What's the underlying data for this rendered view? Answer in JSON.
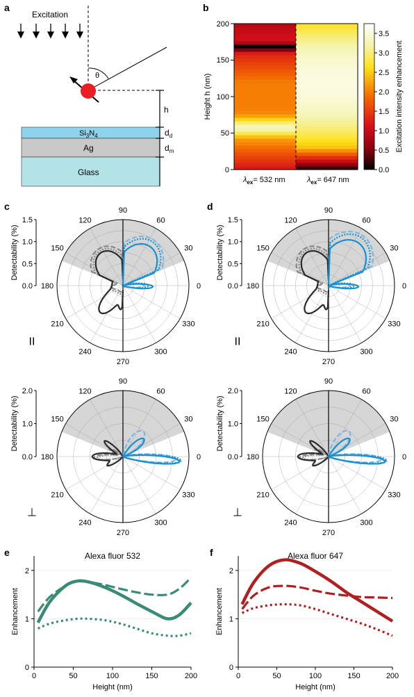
{
  "panel_labels": {
    "a": "a",
    "b": "b",
    "c": "c",
    "d": "d",
    "e": "e",
    "f": "f"
  },
  "diagram_a": {
    "excitation": "Excitation",
    "theta": "θ",
    "h": "h",
    "si3n4_main": "Si",
    "si3n4_sub3": "3",
    "si3n4_n": "N",
    "si3n4_sub4": "4",
    "ag": "Ag",
    "glass": "Glass",
    "dd_d": "d",
    "dd_sub": "d",
    "dm_d": "d",
    "dm_sub": "m"
  },
  "heatmap_b": {
    "ylabel": "Height h (nm)",
    "yticks": [
      "0",
      "50",
      "100",
      "150",
      "200"
    ],
    "col1_prefix": "λ",
    "col1_sub": "ex",
    "col1_value": "= 532 nm",
    "col2_prefix": "λ",
    "col2_sub": "ex",
    "col2_value": "= 647 nm",
    "colorbar_label": "Excitation intensity enhancement",
    "colorbar_ticks": [
      "0.0",
      "0.5",
      "1.0",
      "1.5",
      "2.0",
      "2.5",
      "3.0",
      "3.5"
    ],
    "colors": {
      "low": "#000000",
      "mid1": "#c0001a",
      "mid2": "#f46a00",
      "mid3": "#ffe51a",
      "high": "#ffffff"
    }
  },
  "polar": {
    "angle_labels": [
      "0",
      "30",
      "60",
      "90",
      "120",
      "150",
      "180",
      "210",
      "240",
      "270",
      "300",
      "330"
    ],
    "ylabel": "Detectability (%)",
    "top_ticks": [
      "0.0",
      "0.5",
      "1.0",
      "1.5"
    ],
    "bottom_ticks": [
      "0.0",
      "1.0",
      "2.0"
    ],
    "parallel_symbol": "II",
    "perp_symbol": "⊥",
    "colors": {
      "blue_solid": "#1890d0",
      "blue_light": "#7ab8e0",
      "black": "#2a2a2a",
      "gray": "#888888"
    }
  },
  "chart_data": [
    {
      "type": "line",
      "panel": "e",
      "title": "Alexa fluor 532",
      "xlabel": "Height (nm)",
      "ylabel": "Enhancement",
      "xlim": [
        0,
        200
      ],
      "ylim": [
        0,
        2.3
      ],
      "xticks": [
        "0",
        "50",
        "100",
        "150",
        "200"
      ],
      "yticks": [
        "0",
        "1",
        "2"
      ],
      "color": "#3a8a78",
      "x": [
        5,
        20,
        40,
        55,
        70,
        90,
        110,
        130,
        150,
        170,
        185,
        200
      ],
      "series": [
        {
          "style": "solid",
          "values": [
            0.92,
            1.35,
            1.68,
            1.78,
            1.76,
            1.65,
            1.5,
            1.32,
            1.15,
            1.0,
            1.08,
            1.33
          ]
        },
        {
          "style": "dashed",
          "values": [
            1.15,
            1.45,
            1.68,
            1.77,
            1.76,
            1.7,
            1.62,
            1.55,
            1.5,
            1.5,
            1.62,
            1.85
          ]
        },
        {
          "style": "dotted",
          "values": [
            0.8,
            0.9,
            0.97,
            1.0,
            1.0,
            0.97,
            0.9,
            0.8,
            0.7,
            0.65,
            0.65,
            0.7
          ]
        }
      ]
    },
    {
      "type": "line",
      "panel": "f",
      "title": "Alexa fluor 647",
      "xlabel": "Height (nm)",
      "ylabel": "Enhancement",
      "xlim": [
        0,
        200
      ],
      "ylim": [
        0,
        2.3
      ],
      "xticks": [
        "0",
        "50",
        "100",
        "150",
        "200"
      ],
      "yticks": [
        "0",
        "1",
        "2"
      ],
      "color": "#b02020",
      "x": [
        5,
        20,
        40,
        60,
        80,
        100,
        120,
        140,
        160,
        180,
        200
      ],
      "series": [
        {
          "style": "solid",
          "values": [
            1.3,
            1.75,
            2.1,
            2.22,
            2.15,
            1.98,
            1.78,
            1.55,
            1.35,
            1.15,
            0.95
          ]
        },
        {
          "style": "dashed",
          "values": [
            1.2,
            1.48,
            1.65,
            1.68,
            1.65,
            1.58,
            1.52,
            1.48,
            1.45,
            1.44,
            1.43
          ]
        },
        {
          "style": "dotted",
          "values": [
            1.12,
            1.22,
            1.28,
            1.3,
            1.28,
            1.2,
            1.1,
            1.0,
            0.9,
            0.78,
            0.65
          ]
        }
      ]
    }
  ]
}
